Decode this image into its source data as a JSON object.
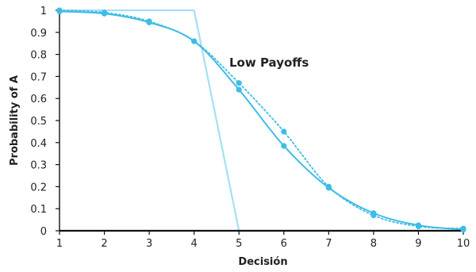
{
  "chart_data": {
    "type": "line",
    "title": "",
    "xlabel": "Decisión",
    "ylabel": "Probability of A",
    "xlim": [
      1,
      10
    ],
    "ylim": [
      0,
      1
    ],
    "x_ticks": [
      "1",
      "2",
      "3",
      "4",
      "5",
      "6",
      "7",
      "8",
      "9",
      "10"
    ],
    "y_ticks": [
      "0",
      "0.1",
      "0.2",
      "0.3",
      "0.4",
      "0.5",
      "0.6",
      "0.7",
      "0.8",
      "0.9",
      "1"
    ],
    "grid": false,
    "annotation": "Low Payoffs",
    "series": [
      {
        "style": "solid-light",
        "color": "#a6dff3",
        "x": [
          1,
          4,
          5,
          10
        ],
        "y": [
          1,
          1,
          0,
          0
        ]
      },
      {
        "style": "dotted-markers",
        "color": "#3dbde6",
        "x": [
          1,
          2,
          3,
          4,
          5,
          6,
          7,
          8,
          9,
          10
        ],
        "y": [
          1,
          0.99,
          0.95,
          0.86,
          0.67,
          0.45,
          0.2,
          0.07,
          0.02,
          0.01
        ]
      },
      {
        "style": "solid-fit",
        "color": "#3dbde6",
        "x": [
          1,
          2,
          3,
          4,
          5,
          6,
          7,
          8,
          9,
          10
        ],
        "y": [
          0.995,
          0.985,
          0.945,
          0.86,
          0.64,
          0.385,
          0.195,
          0.08,
          0.025,
          0.005
        ]
      }
    ]
  }
}
